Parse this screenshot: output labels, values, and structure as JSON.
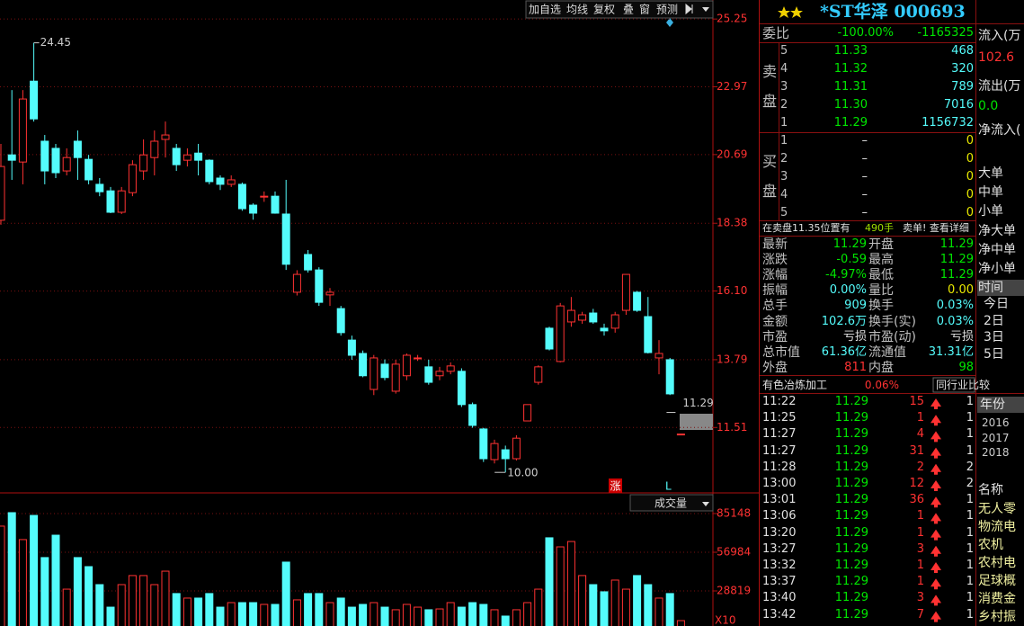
{
  "chart_data": [
    {
      "type": "candlestick",
      "up_color": "#ff3232",
      "down_color": "#54fcfc",
      "open": [
        18.48,
        20.68,
        20.44,
        23.16,
        21.14,
        20.9,
        20.14,
        21.14,
        20.53,
        19.69,
        19.47,
        18.75,
        19.41,
        20.14,
        20.59,
        21.2,
        20.9,
        20.5,
        20.74,
        20.5,
        19.9,
        19.69,
        19.69,
        18.99,
        19.29,
        19.29,
        18.69,
        16.06,
        17.33,
        16.81,
        15.97,
        15.51,
        14.45,
        14.0,
        12.79,
        13.64,
        12.73,
        13.25,
        13.85,
        13.55,
        13.25,
        13.4,
        13.4,
        12.28,
        11.46,
        10.43,
        10.76,
        10.46,
        11.73,
        13.03,
        14.85,
        13.73,
        15.06,
        15.12,
        15.36,
        14.85,
        14.85,
        15.45,
        16.06,
        15.24,
        13.85,
        13.79,
        11.29
      ],
      "close": [
        20.29,
        20.5,
        22.56,
        21.89,
        20.14,
        20.08,
        20.59,
        20.59,
        19.84,
        19.44,
        18.75,
        19.47,
        20.35,
        20.68,
        21.14,
        21.35,
        20.35,
        20.68,
        20.5,
        19.78,
        19.69,
        19.84,
        18.87,
        18.72,
        19.29,
        18.72,
        17.0,
        16.66,
        16.81,
        15.72,
        16.06,
        14.7,
        13.94,
        13.25,
        13.85,
        13.19,
        13.64,
        13.94,
        13.85,
        13.03,
        13.4,
        13.58,
        12.28,
        11.58,
        10.46,
        10.97,
        10.46,
        11.15,
        12.28,
        13.55,
        14.15,
        15.6,
        15.45,
        15.3,
        15.06,
        14.76,
        15.3,
        16.66,
        15.45,
        14.03,
        14.0,
        12.64,
        11.29
      ],
      "high": [
        21.05,
        22.86,
        22.86,
        24.45,
        21.35,
        21.05,
        20.9,
        21.5,
        20.68,
        19.9,
        19.6,
        19.6,
        20.5,
        21.2,
        21.5,
        21.8,
        21.05,
        20.9,
        21.05,
        20.53,
        19.99,
        19.99,
        19.75,
        19.05,
        19.45,
        19.45,
        19.84,
        16.8,
        17.48,
        16.9,
        16.2,
        15.6,
        14.6,
        14.1,
        13.95,
        13.8,
        13.79,
        14.0,
        13.95,
        13.79,
        13.55,
        13.7,
        13.5,
        12.35,
        11.5,
        11.1,
        10.9,
        11.25,
        12.28,
        13.6,
        14.9,
        15.7,
        15.9,
        15.4,
        15.5,
        15.0,
        15.4,
        16.66,
        16.1,
        15.9,
        14.45,
        13.85,
        11.29
      ],
      "low": [
        18.33,
        19.84,
        19.69,
        21.8,
        19.69,
        19.9,
        19.99,
        19.84,
        19.69,
        19.29,
        18.72,
        18.69,
        19.29,
        19.84,
        19.99,
        20.59,
        20.14,
        20.29,
        19.99,
        19.69,
        19.5,
        19.6,
        18.8,
        18.5,
        19.1,
        18.7,
        16.81,
        15.95,
        16.72,
        15.6,
        15.6,
        14.6,
        13.79,
        13.2,
        12.6,
        13.1,
        12.65,
        13.1,
        13.75,
        12.95,
        13.1,
        13.3,
        12.2,
        11.5,
        10.35,
        10.3,
        10.0,
        10.4,
        11.73,
        12.95,
        14.1,
        13.7,
        14.9,
        15.0,
        15.0,
        14.6,
        14.7,
        15.3,
        15.4,
        14.0,
        13.3,
        12.6,
        11.29
      ],
      "ylim": [
        9.31,
        25.89
      ],
      "yticks": [
        25.25,
        22.97,
        20.69,
        18.38,
        {
          "value": 16.1,
          "label": "16.10"
        },
        13.79,
        11.51
      ],
      "grid": true,
      "high_label": 24.45,
      "low_label": {
        "value": 10,
        "label": "10.00"
      },
      "last_label": 11.29
    },
    {
      "type": "bar",
      "up_color": "#ff3232",
      "down_color": "#54fcfc",
      "values": [
        76000,
        85800,
        66200,
        83800,
        53100,
        69400,
        30100,
        53100,
        46500,
        33400,
        17000,
        33400,
        40000,
        40000,
        33400,
        43200,
        26900,
        23600,
        23600,
        26900,
        17000,
        20300,
        20300,
        20300,
        19000,
        19000,
        49800,
        22300,
        26900,
        26900,
        20300,
        23600,
        17000,
        19000,
        20300,
        17000,
        15100,
        19000,
        17000,
        15100,
        15700,
        20300,
        17000,
        20300,
        19000,
        15100,
        10500,
        15100,
        20300,
        30100,
        67500,
        60900,
        64800,
        40000,
        33400,
        28200,
        36700,
        30100,
        40000,
        33400,
        23600,
        26900,
        7200
      ],
      "ylim": [
        0,
        100200
      ],
      "yticks": [
        28819,
        56984,
        85148
      ],
      "unit_label": "X10",
      "grid": true
    }
  ],
  "toolbar": [
    "加自选",
    "均线",
    "复权",
    "叠",
    "窗",
    "预测"
  ],
  "volume_selector": "成交量",
  "markers": [
    "涨",
    "L"
  ],
  "quote": {
    "name": "*ST华泽 000693",
    "ratio": [
      "委比",
      "-100.00%",
      "-1165325"
    ],
    "sell_label": [
      "卖",
      "盘"
    ],
    "buy_label": [
      "买",
      "盘"
    ],
    "sell": [
      [
        "5",
        "11.33",
        "468"
      ],
      [
        "4",
        "11.32",
        "320"
      ],
      [
        "3",
        "11.31",
        "789"
      ],
      [
        "2",
        "11.30",
        "7016"
      ],
      [
        "1",
        "11.29",
        "1156732"
      ]
    ],
    "buy": [
      [
        "1",
        "–",
        "0"
      ],
      [
        "2",
        "–",
        "0"
      ],
      [
        "3",
        "–",
        "0"
      ],
      [
        "4",
        "–",
        "0"
      ],
      [
        "5",
        "–",
        "0"
      ]
    ],
    "notice": [
      "在卖盘11.35位置有",
      "490手",
      "卖单! 查看详细"
    ],
    "stats": [
      [
        "最新",
        "11.29",
        "开盘",
        "11.29"
      ],
      [
        "涨跌",
        "-0.59",
        "最高",
        "11.29"
      ],
      [
        "涨幅",
        "-4.97%",
        "最低",
        "11.29"
      ],
      [
        "振幅",
        "0.00%",
        "量比",
        "0.00"
      ],
      [
        "总手",
        "909",
        "换手",
        "0.03%"
      ],
      [
        "金额",
        "102.6万",
        "换手(实)",
        "0.03%"
      ],
      [
        "市盈",
        "亏损",
        "市盈(动)",
        "亏损"
      ],
      [
        "总市值",
        "61.36亿",
        "流通值",
        "31.31亿"
      ],
      [
        "外盘",
        "811",
        "内盘",
        "98"
      ]
    ],
    "industry": [
      "有色冶炼加工",
      "0.06%",
      "同行业比较"
    ],
    "ticks": [
      [
        "11:22",
        "11.29",
        "15",
        "1"
      ],
      [
        "11:25",
        "11.29",
        "1",
        "1"
      ],
      [
        "11:27",
        "11.29",
        "4",
        "1"
      ],
      [
        "11:27",
        "11.29",
        "31",
        "1"
      ],
      [
        "11:28",
        "11.29",
        "2",
        "2"
      ],
      [
        "13:00",
        "11.29",
        "12",
        "2"
      ],
      [
        "13:01",
        "11.29",
        "36",
        "1"
      ],
      [
        "13:06",
        "11.29",
        "1",
        "1"
      ],
      [
        "13:20",
        "11.29",
        "1",
        "1"
      ],
      [
        "13:27",
        "11.29",
        "3",
        "1"
      ],
      [
        "13:32",
        "11.29",
        "1",
        "1"
      ],
      [
        "13:37",
        "11.29",
        "1",
        "1"
      ],
      [
        "13:40",
        "11.29",
        "3",
        "1"
      ],
      [
        "13:42",
        "11.29",
        "7",
        "1"
      ]
    ]
  },
  "side": {
    "flow": [
      "流入(万",
      "102.6",
      "流出(万",
      "0.0",
      "净流入("
    ],
    "orders": [
      "大单",
      "中单",
      "小单",
      "净大单",
      "净中单",
      "净小单"
    ],
    "period_header": "时间",
    "periods": [
      "今日",
      "2日",
      "3日",
      "5日"
    ],
    "year_header": "年份",
    "years": [
      "2016",
      "2017",
      "2018"
    ],
    "concept_header": "名称",
    "concepts": [
      "无人零",
      "物流电",
      "农机",
      "农村电",
      "足球概",
      "消费金",
      "乡村振"
    ]
  }
}
